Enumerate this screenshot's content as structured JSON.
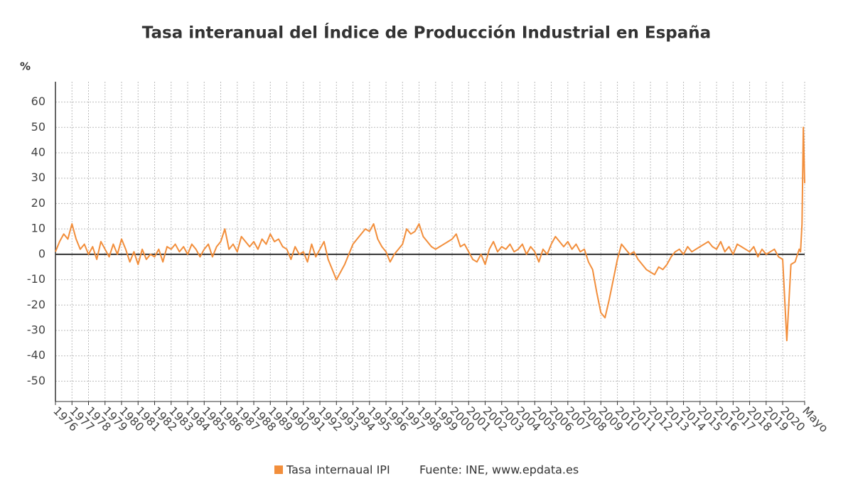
{
  "chart_data": {
    "type": "line",
    "title": "Tasa interanual del Índice de Producción Industrial en España",
    "y_label": "%",
    "source": "Fuente: INE, www.epdata.es",
    "x": [
      1976,
      1976.25,
      1976.5,
      1976.75,
      1977,
      1977.25,
      1977.5,
      1977.75,
      1978,
      1978.25,
      1978.5,
      1978.75,
      1979,
      1979.25,
      1979.5,
      1979.75,
      1980,
      1980.25,
      1980.5,
      1980.75,
      1981,
      1981.25,
      1981.5,
      1981.75,
      1982,
      1982.25,
      1982.5,
      1982.75,
      1983,
      1983.25,
      1983.5,
      1983.75,
      1984,
      1984.25,
      1984.5,
      1984.75,
      1985,
      1985.25,
      1985.5,
      1985.75,
      1986,
      1986.25,
      1986.5,
      1986.75,
      1987,
      1987.25,
      1987.5,
      1987.75,
      1988,
      1988.25,
      1988.5,
      1988.75,
      1989,
      1989.25,
      1989.5,
      1989.75,
      1990,
      1990.25,
      1990.5,
      1990.75,
      1991,
      1991.25,
      1991.5,
      1991.75,
      1992,
      1992.25,
      1992.5,
      1992.75,
      1993,
      1993.25,
      1993.5,
      1993.75,
      1994,
      1994.25,
      1994.5,
      1994.75,
      1995,
      1995.25,
      1995.5,
      1995.75,
      1996,
      1996.25,
      1996.5,
      1996.75,
      1997,
      1997.25,
      1997.5,
      1997.75,
      1998,
      1998.25,
      1998.5,
      1998.75,
      1999,
      1999.25,
      1999.5,
      1999.75,
      2000,
      2000.25,
      2000.5,
      2000.75,
      2001,
      2001.25,
      2001.5,
      2001.75,
      2002,
      2002.25,
      2002.5,
      2002.75,
      2003,
      2003.25,
      2003.5,
      2003.75,
      2004,
      2004.25,
      2004.5,
      2004.75,
      2005,
      2005.25,
      2005.5,
      2005.75,
      2006,
      2006.25,
      2006.5,
      2006.75,
      2007,
      2007.25,
      2007.5,
      2007.75,
      2008,
      2008.25,
      2008.5,
      2008.75,
      2009,
      2009.25,
      2009.5,
      2009.75,
      2010,
      2010.25,
      2010.5,
      2010.75,
      2011,
      2011.25,
      2011.5,
      2011.75,
      2012,
      2012.25,
      2012.5,
      2012.75,
      2013,
      2013.25,
      2013.5,
      2013.75,
      2014,
      2014.25,
      2014.5,
      2014.75,
      2015,
      2015.25,
      2015.5,
      2015.75,
      2016,
      2016.25,
      2016.5,
      2016.75,
      2017,
      2017.25,
      2017.5,
      2017.75,
      2018,
      2018.25,
      2018.5,
      2018.75,
      2019,
      2019.25,
      2019.5,
      2019.75,
      2020,
      2020.25,
      2020.5,
      2020.75,
      2021,
      2021.08,
      2021.17,
      2021.25,
      2021.33
    ],
    "series": [
      {
        "name": "Tasa internaual IPI",
        "color": "#f28e3b",
        "values": [
          1,
          5,
          8,
          6,
          12,
          6,
          2,
          4,
          0,
          3,
          -2,
          5,
          2,
          -1,
          4,
          0,
          6,
          2,
          -3,
          1,
          -4,
          2,
          -2,
          0,
          -1,
          2,
          -3,
          3,
          2,
          4,
          1,
          3,
          0,
          4,
          2,
          -1,
          2,
          4,
          -1,
          3,
          5,
          10,
          2,
          4,
          1,
          7,
          5,
          3,
          5,
          2,
          6,
          4,
          8,
          5,
          6,
          3,
          2,
          -2,
          3,
          0,
          1,
          -3,
          4,
          -1,
          2,
          5,
          -2,
          -6,
          -10,
          -7,
          -4,
          0,
          4,
          6,
          8,
          10,
          9,
          12,
          6,
          3,
          1,
          -3,
          0,
          2,
          4,
          10,
          8,
          9,
          12,
          7,
          5,
          3,
          2,
          3,
          4,
          5,
          6,
          8,
          3,
          4,
          1,
          -2,
          -3,
          0,
          -4,
          2,
          5,
          1,
          3,
          2,
          4,
          1,
          2,
          4,
          0,
          3,
          1,
          -3,
          2,
          0,
          4,
          7,
          5,
          3,
          5,
          2,
          4,
          1,
          2,
          -3,
          -6,
          -15,
          -23,
          -25,
          -18,
          -10,
          -2,
          4,
          2,
          0,
          1,
          -2,
          -4,
          -6,
          -7,
          -8,
          -5,
          -6,
          -4,
          -1,
          1,
          2,
          0,
          3,
          1,
          2,
          3,
          4,
          5,
          3,
          2,
          5,
          1,
          3,
          0,
          4,
          3,
          2,
          1,
          3,
          -1,
          2,
          0,
          1,
          2,
          -1,
          -2,
          -34,
          -4,
          -3,
          2,
          1,
          12,
          50,
          28
        ]
      }
    ],
    "xlim": [
      1976,
      2021.33
    ],
    "xticks": [
      {
        "value": 1976,
        "label": "1976"
      },
      {
        "value": 1977,
        "label": "1977"
      },
      {
        "value": 1978,
        "label": "1978"
      },
      {
        "value": 1979,
        "label": "1979"
      },
      {
        "value": 1980,
        "label": "1980"
      },
      {
        "value": 1981,
        "label": "1981"
      },
      {
        "value": 1982,
        "label": "1982"
      },
      {
        "value": 1983,
        "label": "1983"
      },
      {
        "value": 1984,
        "label": "1984"
      },
      {
        "value": 1985,
        "label": "1985"
      },
      {
        "value": 1986,
        "label": "1986"
      },
      {
        "value": 1987,
        "label": "1987"
      },
      {
        "value": 1988,
        "label": "1988"
      },
      {
        "value": 1989,
        "label": "1989"
      },
      {
        "value": 1990,
        "label": "1990"
      },
      {
        "value": 1991,
        "label": "1991"
      },
      {
        "value": 1992,
        "label": "1992"
      },
      {
        "value": 1993,
        "label": "1993"
      },
      {
        "value": 1994,
        "label": "1994"
      },
      {
        "value": 1995,
        "label": "1995"
      },
      {
        "value": 1996,
        "label": "1996"
      },
      {
        "value": 1997,
        "label": "1997"
      },
      {
        "value": 1998,
        "label": "1998"
      },
      {
        "value": 1999,
        "label": "1999"
      },
      {
        "value": 2000,
        "label": "2000"
      },
      {
        "value": 2001,
        "label": "2001"
      },
      {
        "value": 2002,
        "label": "2002"
      },
      {
        "value": 2003,
        "label": "2003"
      },
      {
        "value": 2004,
        "label": "2004"
      },
      {
        "value": 2005,
        "label": "2005"
      },
      {
        "value": 2006,
        "label": "2006"
      },
      {
        "value": 2007,
        "label": "2007"
      },
      {
        "value": 2008,
        "label": "2008"
      },
      {
        "value": 2009,
        "label": "2009"
      },
      {
        "value": 2010,
        "label": "2010"
      },
      {
        "value": 2011,
        "label": "2011"
      },
      {
        "value": 2012,
        "label": "2012"
      },
      {
        "value": 2013,
        "label": "2013"
      },
      {
        "value": 2014,
        "label": "2014"
      },
      {
        "value": 2015,
        "label": "2015"
      },
      {
        "value": 2016,
        "label": "2016"
      },
      {
        "value": 2017,
        "label": "2017"
      },
      {
        "value": 2018,
        "label": "2018"
      },
      {
        "value": 2019,
        "label": "2019"
      },
      {
        "value": 2020,
        "label": "2020"
      },
      {
        "value": 2021.33,
        "label": "Mayo"
      }
    ],
    "ylim": [
      -58,
      68
    ],
    "yticks": [
      -50,
      -40,
      -30,
      -20,
      -10,
      0,
      10,
      20,
      30,
      40,
      50,
      60
    ],
    "grid": true
  }
}
